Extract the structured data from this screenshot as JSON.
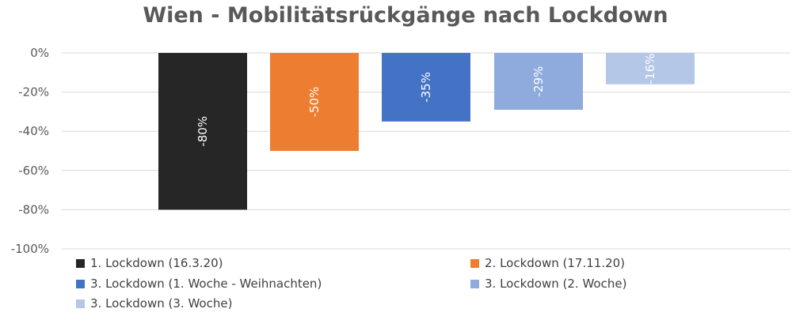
{
  "chart_data": {
    "type": "bar",
    "title": "Wien - Mobilitätsrückgänge nach Lockdown",
    "xlabel": "",
    "ylabel": "",
    "ylim": [
      -100,
      0
    ],
    "yticks": [
      0,
      -20,
      -40,
      -60,
      -80,
      -100
    ],
    "ytick_labels": [
      "0%",
      "-20%",
      "-40%",
      "-60%",
      "-80%",
      "-100%"
    ],
    "grid": true,
    "legend_position": "bottom",
    "series": [
      {
        "name": "1. Lockdown (16.3.20)",
        "value": -80,
        "label": "-80%",
        "color": "#262626"
      },
      {
        "name": "2. Lockdown (17.11.20)",
        "value": -50,
        "label": "-50%",
        "color": "#ED7D31"
      },
      {
        "name": "3. Lockdown (1. Woche - Weihnachten)",
        "value": -35,
        "label": "-35%",
        "color": "#4472C4"
      },
      {
        "name": "3. Lockdown (2. Woche)",
        "value": -29,
        "label": "-29%",
        "color": "#8FAADC"
      },
      {
        "name": "3. Lockdown (3. Woche)",
        "value": -16,
        "label": "-16%",
        "color": "#B4C7E7"
      }
    ]
  }
}
